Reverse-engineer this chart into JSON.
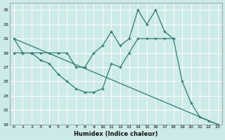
{
  "xlabel": "Humidex (Indice chaleur)",
  "bg_color": "#cceae8",
  "grid_color": "#ffffff",
  "line_color": "#2d7b72",
  "line1": {
    "x": [
      0,
      1,
      2,
      3,
      4,
      5,
      6,
      7,
      8,
      9,
      10,
      11,
      12,
      13,
      14,
      15,
      16,
      17,
      18
    ],
    "y": [
      31,
      29,
      29,
      29,
      29,
      29,
      29,
      27,
      27,
      29,
      30,
      32,
      30,
      31,
      35,
      33,
      35,
      32,
      31
    ]
  },
  "line2": {
    "x": [
      0,
      1,
      2,
      3,
      4,
      5,
      6,
      7,
      8,
      9,
      10,
      11,
      12,
      13,
      14,
      15,
      16,
      17,
      18,
      19,
      20,
      21,
      22,
      23
    ],
    "y": [
      29,
      29,
      29,
      28,
      27.5,
      26,
      25,
      24,
      23.5,
      23.5,
      24,
      27.5,
      27,
      29,
      31,
      31,
      31,
      31,
      31,
      25,
      22,
      20,
      19.5,
      19
    ]
  },
  "line3": {
    "x": [
      0,
      23
    ],
    "y": [
      31,
      19
    ]
  },
  "ylim": [
    19,
    36
  ],
  "xlim": [
    -0.5,
    23.5
  ],
  "yticks": [
    19,
    21,
    23,
    25,
    27,
    29,
    31,
    33,
    35
  ],
  "xticks": [
    0,
    1,
    2,
    3,
    4,
    5,
    6,
    7,
    8,
    9,
    10,
    11,
    12,
    13,
    14,
    15,
    16,
    17,
    18,
    19,
    20,
    21,
    22,
    23
  ]
}
